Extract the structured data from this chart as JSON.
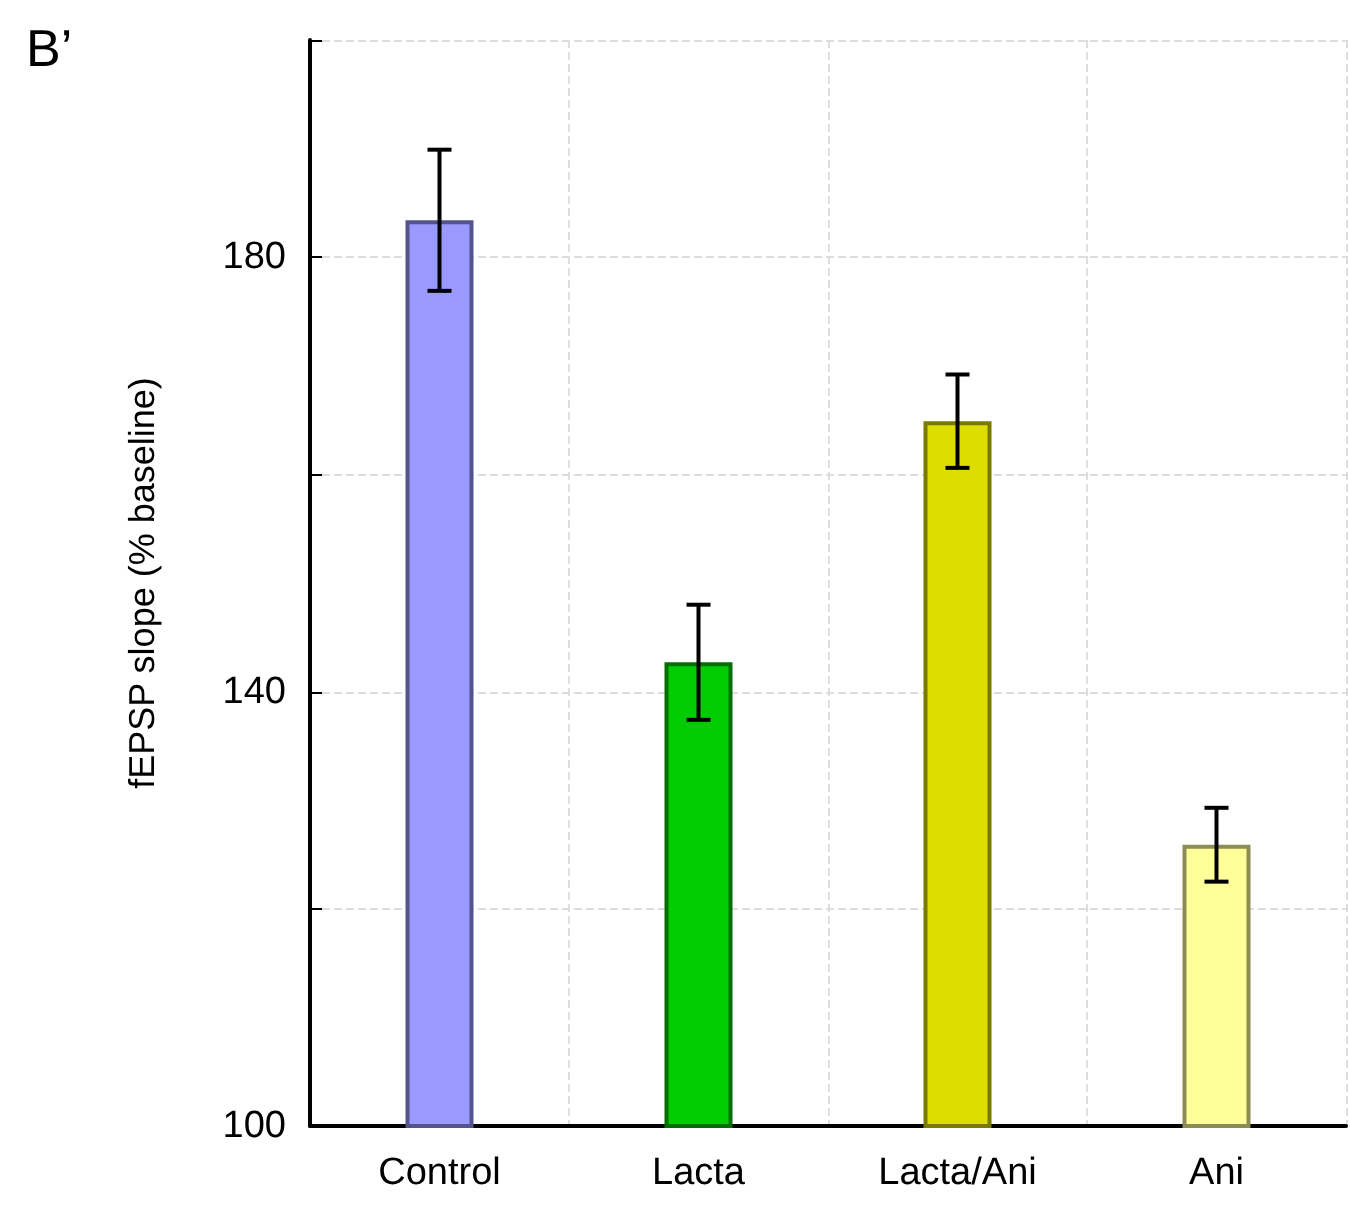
{
  "chart_data": {
    "type": "bar",
    "title": "B’",
    "ylabel": "fEPSP slope (% baseline)",
    "categories": [
      "Control",
      "Lacta",
      "Lacta/Ani",
      "Ani"
    ],
    "values": [
      183.4,
      142.7,
      164.9,
      125.9
    ],
    "errors": [
      6.5,
      5.3,
      4.3,
      3.4
    ],
    "colors": [
      "#9999ff",
      "#00cc00",
      "#dddd00",
      "#ffff99"
    ],
    "ylim": [
      100,
      200
    ],
    "yticks": [
      100,
      {
        "value": 120,
        "label": null
      },
      140,
      {
        "value": 160,
        "label": null
      },
      180,
      {
        "value": 200,
        "label": null
      }
    ],
    "grid": true
  }
}
